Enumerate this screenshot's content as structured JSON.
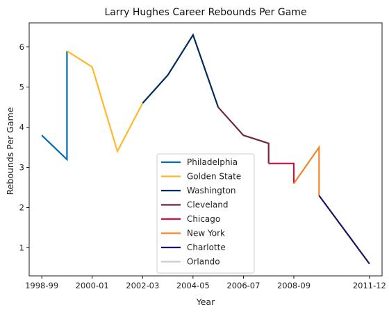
{
  "chart_data": {
    "type": "line",
    "title": "Larry Hughes Career Rebounds Per Game",
    "xlabel": "Year",
    "ylabel": "Rebounds Per Game",
    "x_ticks": [
      "1998-99",
      "2000-01",
      "2002-03",
      "2004-05",
      "2006-07",
      "2008-09",
      "2011-12"
    ],
    "y_ticks": [
      1,
      2,
      3,
      4,
      5,
      6
    ],
    "ylim": [
      0.3,
      6.6
    ],
    "grid": false,
    "legend_position": "lower-center",
    "series": [
      {
        "name": "Philadelphia",
        "color": "#006bb6",
        "points": [
          [
            "1998-99",
            3.8
          ],
          [
            "1999-00",
            3.2
          ],
          [
            "1999-00",
            5.9
          ]
        ]
      },
      {
        "name": "Golden State",
        "color": "#fdb927",
        "points": [
          [
            "1999-00",
            5.9
          ],
          [
            "2000-01",
            5.5
          ],
          [
            "2001-02",
            3.4
          ],
          [
            "2002-03",
            4.6
          ]
        ]
      },
      {
        "name": "Washington",
        "color": "#002b5c",
        "points": [
          [
            "2002-03",
            4.6
          ],
          [
            "2003-04",
            5.3
          ],
          [
            "2004-05",
            6.3
          ],
          [
            "2005-06",
            4.5
          ]
        ]
      },
      {
        "name": "Cleveland",
        "color": "#6f263d",
        "points": [
          [
            "2005-06",
            4.5
          ],
          [
            "2006-07",
            3.8
          ],
          [
            "2007-08",
            3.6
          ],
          [
            "2007-08",
            3.1
          ]
        ]
      },
      {
        "name": "Chicago",
        "color": "#ce1141",
        "points": [
          [
            "2007-08",
            3.1
          ],
          [
            "2008-09",
            3.1
          ],
          [
            "2008-09",
            2.6
          ]
        ]
      },
      {
        "name": "New York",
        "color": "#f58426",
        "points": [
          [
            "2008-09",
            2.6
          ],
          [
            "2009-10",
            3.5
          ],
          [
            "2009-10",
            2.3
          ]
        ]
      },
      {
        "name": "Charlotte",
        "color": "#1d1160",
        "points": [
          [
            "2009-10",
            2.3
          ],
          [
            "2011-12",
            0.6
          ]
        ]
      },
      {
        "name": "Orlando",
        "color": "#c4ced4",
        "points": []
      }
    ]
  }
}
